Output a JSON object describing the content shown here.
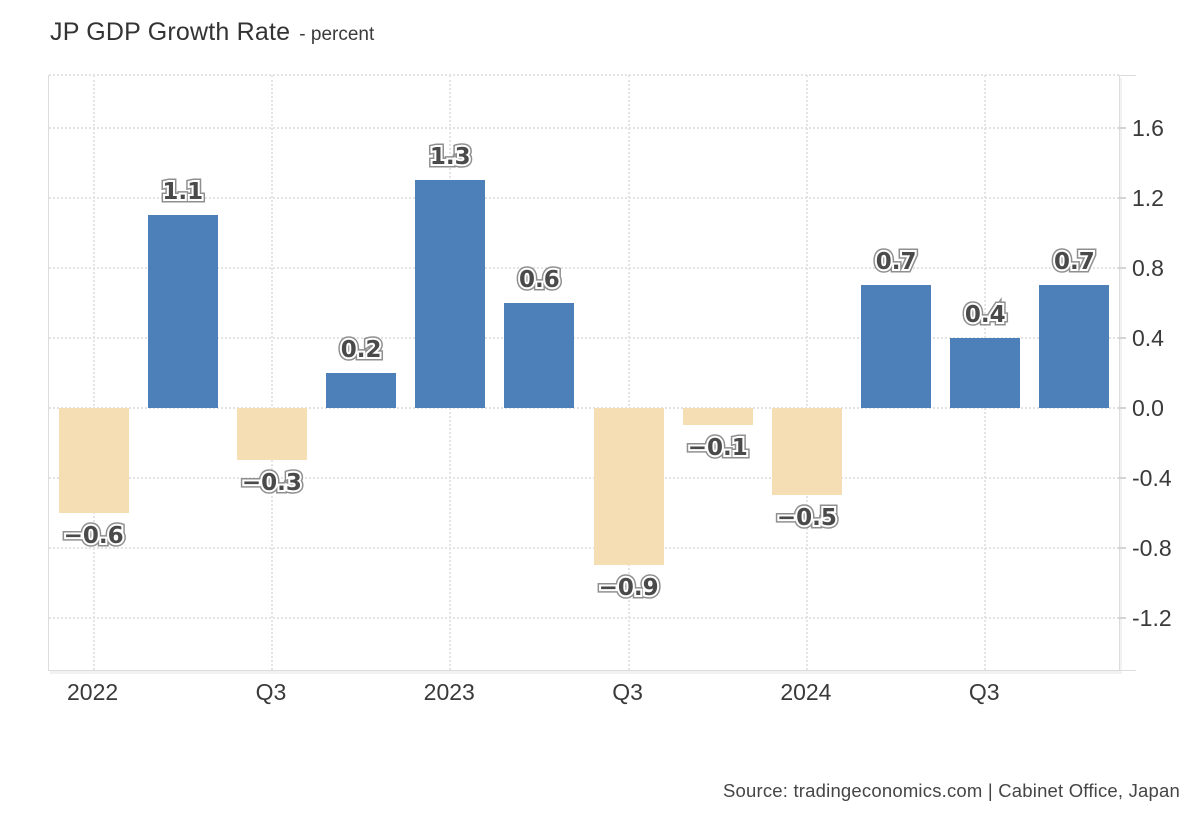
{
  "chart_data": {
    "type": "bar",
    "title": "JP GDP Growth Rate",
    "unit_label": "- percent",
    "x_tick_labels": [
      "2022",
      "Q3",
      "2023",
      "Q3",
      "2024",
      "Q3"
    ],
    "values": [
      -0.6,
      1.1,
      -0.3,
      0.2,
      1.3,
      0.6,
      -0.9,
      -0.1,
      -0.5,
      0.7,
      0.4,
      0.7
    ],
    "data_labels": [
      "−0.6",
      "1.1",
      "−0.3",
      "0.2",
      "1.3",
      "0.6",
      "−0.9",
      "−0.1",
      "−0.5",
      "0.7",
      "0.4",
      "0.7"
    ],
    "y_ticks": [
      1.6,
      1.2,
      0.8,
      0.4,
      0,
      -0.4,
      -0.8,
      -1.2
    ],
    "y_tick_labels": [
      "1.6",
      "1.2",
      "0.8",
      "0.4",
      "0.0",
      "-0.4",
      "-0.8",
      "-1.2"
    ],
    "ylim": [
      -1.5,
      1.9
    ],
    "grid": true,
    "legend": "none",
    "positive_color": "#4d80b8",
    "negative_color": "#f5deb3",
    "source": "Source: tradingeconomics.com | Cabinet Office, Japan"
  }
}
